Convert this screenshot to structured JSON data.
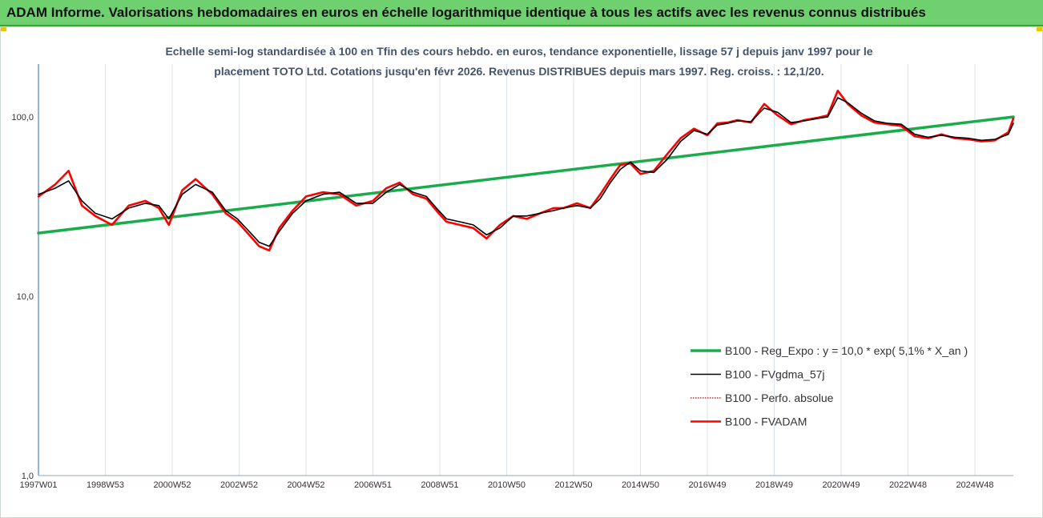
{
  "banner": {
    "title": "ADAM Informe. Valorisations hebdomadaires en euros en échelle logarithmique identique à tous les actifs avec les revenus connus distribués",
    "background_color": "#6fd06f"
  },
  "chart_data": {
    "type": "line",
    "title_lines": [
      "Echelle semi-log standardisée à 100 en Tfin des cours hebdo. en euros, tendance exponentielle, lissage 57 j depuis janv 1997 pour le",
      "placement TOTO Ltd. Cotations jusqu'en févr 2026. Revenus DISTRIBUES depuis mars 1997. Reg. croiss. : 12,1/20."
    ],
    "y_scale": "log",
    "ylim": [
      1,
      200
    ],
    "y_ticks": [
      {
        "value": 1,
        "label": "1,0"
      },
      {
        "value": 10,
        "label": "10,0"
      },
      {
        "value": 100,
        "label": "100,0"
      }
    ],
    "x_range": [
      1997.0,
      2026.15
    ],
    "x_ticks": [
      {
        "x": 1997.0,
        "label": "1997W01"
      },
      {
        "x": 1999.0,
        "label": "1998W53"
      },
      {
        "x": 2001.0,
        "label": "2000W52"
      },
      {
        "x": 2003.0,
        "label": "2002W52"
      },
      {
        "x": 2005.0,
        "label": "2004W52"
      },
      {
        "x": 2007.0,
        "label": "2006W51"
      },
      {
        "x": 2009.0,
        "label": "2008W51"
      },
      {
        "x": 2011.0,
        "label": "2010W50"
      },
      {
        "x": 2013.0,
        "label": "2012W50"
      },
      {
        "x": 2015.0,
        "label": "2014W50"
      },
      {
        "x": 2017.0,
        "label": "2016W49"
      },
      {
        "x": 2019.0,
        "label": "2018W49"
      },
      {
        "x": 2021.0,
        "label": "2020W49"
      },
      {
        "x": 2023.0,
        "label": "2022W48"
      },
      {
        "x": 2025.0,
        "label": "2024W48"
      }
    ],
    "grid": {
      "vertical": true,
      "horizontal": false
    },
    "legend_position": "bottom-right",
    "series": [
      {
        "name": "B100 - Reg_Expo : y = 10,0 * exp( 5,1% *  X_an )",
        "style": "solid-thick",
        "color": "#1aab4a",
        "x": [
          1997.0,
          2026.15
        ],
        "y": [
          22.5,
          100
        ]
      },
      {
        "name": "B100 - FVgdma_57j",
        "style": "solid-thin",
        "color": "#000000",
        "x": [
          1997.0,
          1997.5,
          1997.9,
          1998.3,
          1998.7,
          1999.2,
          1999.7,
          2000.2,
          2000.6,
          2000.9,
          2001.3,
          2001.7,
          2002.2,
          2002.6,
          2002.95,
          2003.3,
          2003.6,
          2003.9,
          2004.2,
          2004.6,
          2005.0,
          2005.5,
          2006.0,
          2006.5,
          2007.0,
          2007.4,
          2007.8,
          2008.2,
          2008.6,
          2008.9,
          2009.2,
          2009.6,
          2010.0,
          2010.4,
          2010.8,
          2011.2,
          2011.6,
          2012.0,
          2012.4,
          2012.7,
          2013.1,
          2013.5,
          2013.8,
          2014.1,
          2014.4,
          2014.7,
          2015.0,
          2015.4,
          2015.8,
          2016.2,
          2016.6,
          2017.0,
          2017.3,
          2017.6,
          2017.9,
          2018.3,
          2018.7,
          2019.1,
          2019.5,
          2019.9,
          2020.3,
          2020.6,
          2020.9,
          2021.2,
          2021.6,
          2022.0,
          2022.4,
          2022.8,
          2023.2,
          2023.6,
          2024.0,
          2024.4,
          2024.8,
          2025.2,
          2025.6,
          2026.0,
          2026.15
        ],
        "y": [
          37,
          40,
          44,
          34,
          29,
          27,
          31,
          33,
          32,
          27,
          37,
          42,
          38,
          30,
          27,
          23,
          20,
          19,
          23,
          29,
          34,
          37,
          38,
          33,
          33,
          38,
          42,
          38,
          36,
          31,
          27,
          26,
          25,
          22,
          24,
          28,
          28,
          29,
          30,
          31,
          32,
          31,
          35,
          43,
          51,
          56,
          50,
          49,
          58,
          73,
          84,
          80,
          90,
          92,
          95,
          94,
          112,
          106,
          93,
          95,
          98,
          100,
          128,
          120,
          105,
          95,
          92,
          91,
          80,
          77,
          79,
          77,
          76,
          74,
          75,
          80,
          92
        ]
      },
      {
        "name": "B100 - Perfo. absolue",
        "style": "dotted",
        "color": "#c00000",
        "x": [
          1997.0,
          1997.5,
          1997.9,
          1998.3,
          1998.7,
          1999.2,
          1999.7,
          2000.2,
          2000.6,
          2000.9,
          2001.3,
          2001.7,
          2002.2,
          2002.6,
          2002.95,
          2003.3,
          2003.6,
          2003.9,
          2004.2,
          2004.6,
          2005.0,
          2005.5,
          2006.0,
          2006.5,
          2007.0,
          2007.4,
          2007.8,
          2008.2,
          2008.6,
          2008.9,
          2009.2,
          2009.6,
          2010.0,
          2010.4,
          2010.8,
          2011.2,
          2011.6,
          2012.0,
          2012.4,
          2012.7,
          2013.1,
          2013.5,
          2013.8,
          2014.1,
          2014.4,
          2014.7,
          2015.0,
          2015.4,
          2015.8,
          2016.2,
          2016.6,
          2017.0,
          2017.3,
          2017.6,
          2017.9,
          2018.3,
          2018.7,
          2019.1,
          2019.5,
          2019.9,
          2020.3,
          2020.6,
          2020.9,
          2021.2,
          2021.6,
          2022.0,
          2022.4,
          2022.8,
          2023.2,
          2023.6,
          2024.0,
          2024.4,
          2024.8,
          2025.2,
          2025.6,
          2026.0,
          2026.15
        ],
        "y": [
          36,
          42,
          50,
          32,
          28,
          25,
          32,
          34,
          31,
          25,
          39,
          45,
          37,
          29,
          26,
          22,
          19,
          18,
          24,
          30,
          36,
          38,
          37,
          32,
          34,
          40,
          43,
          37,
          35,
          30,
          26,
          25,
          24,
          21,
          25,
          28,
          27,
          29,
          31,
          31,
          33,
          31,
          37,
          45,
          54,
          55,
          48,
          50,
          62,
          76,
          86,
          79,
          92,
          93,
          96,
          93,
          118,
          102,
          91,
          96,
          99,
          102,
          140,
          118,
          102,
          93,
          91,
          89,
          78,
          76,
          80,
          76,
          75,
          73,
          74,
          82,
          98
        ]
      },
      {
        "name": "B100 - FVADAM",
        "style": "solid-thick",
        "color": "#ff0000",
        "x": [
          1997.0,
          1997.5,
          1997.9,
          1998.3,
          1998.7,
          1999.2,
          1999.7,
          2000.2,
          2000.6,
          2000.9,
          2001.3,
          2001.7,
          2002.2,
          2002.6,
          2002.95,
          2003.3,
          2003.6,
          2003.9,
          2004.2,
          2004.6,
          2005.0,
          2005.5,
          2006.0,
          2006.5,
          2007.0,
          2007.4,
          2007.8,
          2008.2,
          2008.6,
          2008.9,
          2009.2,
          2009.6,
          2010.0,
          2010.4,
          2010.8,
          2011.2,
          2011.6,
          2012.0,
          2012.4,
          2012.7,
          2013.1,
          2013.5,
          2013.8,
          2014.1,
          2014.4,
          2014.7,
          2015.0,
          2015.4,
          2015.8,
          2016.2,
          2016.6,
          2017.0,
          2017.3,
          2017.6,
          2017.9,
          2018.3,
          2018.7,
          2019.1,
          2019.5,
          2019.9,
          2020.3,
          2020.6,
          2020.9,
          2021.2,
          2021.6,
          2022.0,
          2022.4,
          2022.8,
          2023.2,
          2023.6,
          2024.0,
          2024.4,
          2024.8,
          2025.2,
          2025.6,
          2026.0,
          2026.15
        ],
        "y": [
          36,
          42,
          50,
          32,
          28,
          25,
          32,
          34,
          31,
          25,
          39,
          45,
          37,
          29,
          26,
          22,
          19,
          18,
          24,
          30,
          36,
          38,
          37,
          32,
          34,
          40,
          43,
          37,
          35,
          30,
          26,
          25,
          24,
          21,
          25,
          28,
          27,
          29,
          31,
          31,
          33,
          31,
          37,
          45,
          54,
          55,
          48,
          50,
          62,
          76,
          86,
          79,
          92,
          93,
          96,
          93,
          118,
          102,
          91,
          96,
          99,
          102,
          140,
          118,
          102,
          93,
          91,
          89,
          78,
          76,
          80,
          76,
          75,
          73,
          74,
          82,
          98
        ]
      }
    ]
  }
}
